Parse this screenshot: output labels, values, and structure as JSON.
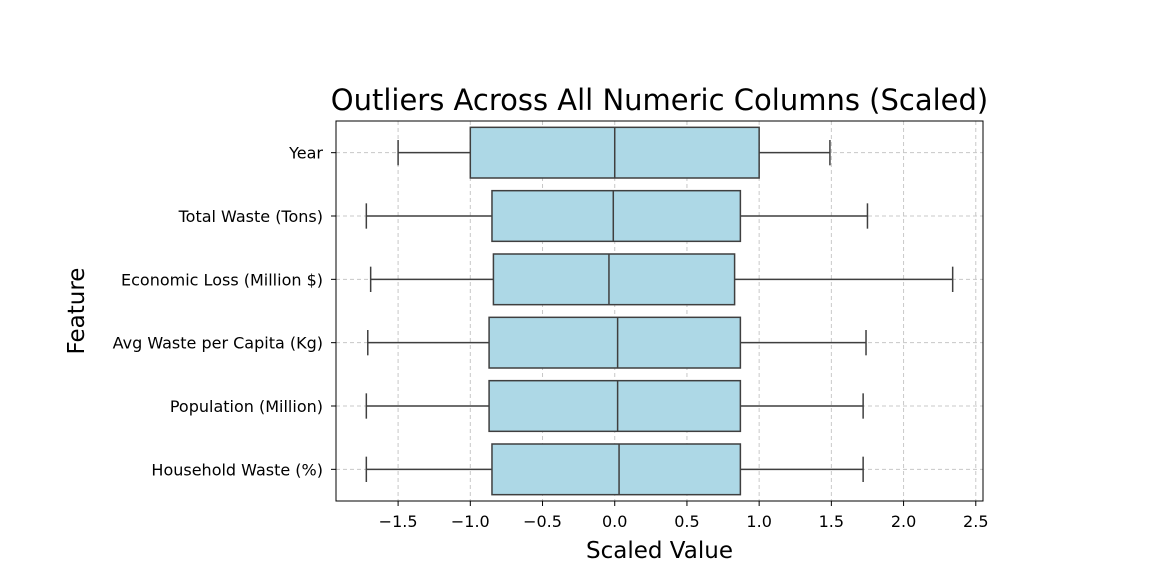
{
  "chart_data": {
    "type": "boxplot",
    "orientation": "horizontal",
    "title": "Outliers Across All Numeric Columns (Scaled)",
    "xlabel": "Scaled Value",
    "ylabel": "Feature",
    "xlim": [
      -1.93,
      2.55
    ],
    "x_ticks": [
      -1.5,
      -1.0,
      -0.5,
      0.0,
      0.5,
      1.0,
      1.5,
      2.0,
      2.5
    ],
    "x_tick_labels": [
      "−1.5",
      "−1.0",
      "−0.5",
      "0.0",
      "0.5",
      "1.0",
      "1.5",
      "2.0",
      "2.5"
    ],
    "grid": true,
    "box_color": "#add8e6",
    "line_color": "#3f3f3f",
    "grid_color": "#c8c8c8",
    "categories": [
      "Year",
      "Total Waste (Tons)",
      "Economic Loss (Million $)",
      "Avg Waste per Capita (Kg)",
      "Population (Million)",
      "Household Waste (%)"
    ],
    "boxes": [
      {
        "label": "Year",
        "whisker_low": -1.5,
        "q1": -1.0,
        "median": 0.0,
        "q3": 1.0,
        "whisker_high": 1.49
      },
      {
        "label": "Total Waste (Tons)",
        "whisker_low": -1.72,
        "q1": -0.85,
        "median": -0.01,
        "q3": 0.87,
        "whisker_high": 1.75
      },
      {
        "label": "Economic Loss (Million $)",
        "whisker_low": -1.69,
        "q1": -0.84,
        "median": -0.04,
        "q3": 0.83,
        "whisker_high": 2.34
      },
      {
        "label": "Avg Waste per Capita (Kg)",
        "whisker_low": -1.71,
        "q1": -0.87,
        "median": 0.02,
        "q3": 0.87,
        "whisker_high": 1.74
      },
      {
        "label": "Population (Million)",
        "whisker_low": -1.72,
        "q1": -0.87,
        "median": 0.02,
        "q3": 0.87,
        "whisker_high": 1.72
      },
      {
        "label": "Household Waste (%)",
        "whisker_low": -1.72,
        "q1": -0.85,
        "median": 0.03,
        "q3": 0.87,
        "whisker_high": 1.72
      }
    ]
  }
}
